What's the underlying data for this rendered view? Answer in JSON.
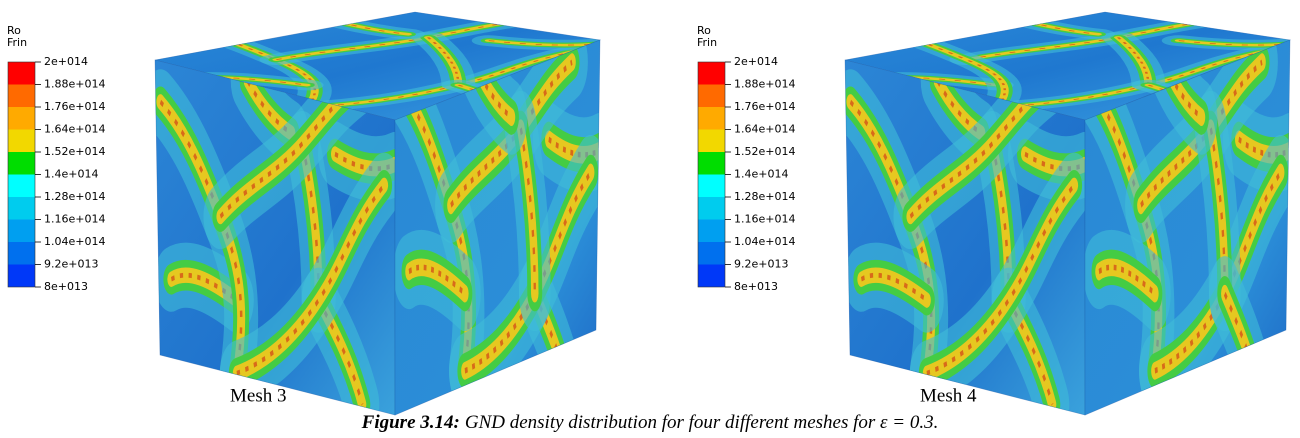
{
  "panels": [
    {
      "legend_title": [
        "Ro",
        "Frin"
      ],
      "legend_labels": [
        "2e+014",
        "1.88e+014",
        "1.76e+014",
        "1.64e+014",
        "1.52e+014",
        "1.4e+014",
        "1.28e+014",
        "1.16e+014",
        "1.04e+014",
        "9.2e+013",
        "8e+013"
      ],
      "caption": "Mesh 3"
    },
    {
      "legend_title": [
        "Ro",
        "Frin"
      ],
      "legend_labels": [
        "2e+014",
        "1.88e+014",
        "1.76e+014",
        "1.64e+014",
        "1.52e+014",
        "1.4e+014",
        "1.28e+014",
        "1.16e+014",
        "1.04e+014",
        "9.2e+013",
        "8e+013"
      ],
      "caption": "Mesh 4"
    }
  ],
  "figure_caption": {
    "label": "Figure 3.14:",
    "text": "GND density distribution for four different meshes for ε = 0.3."
  }
}
